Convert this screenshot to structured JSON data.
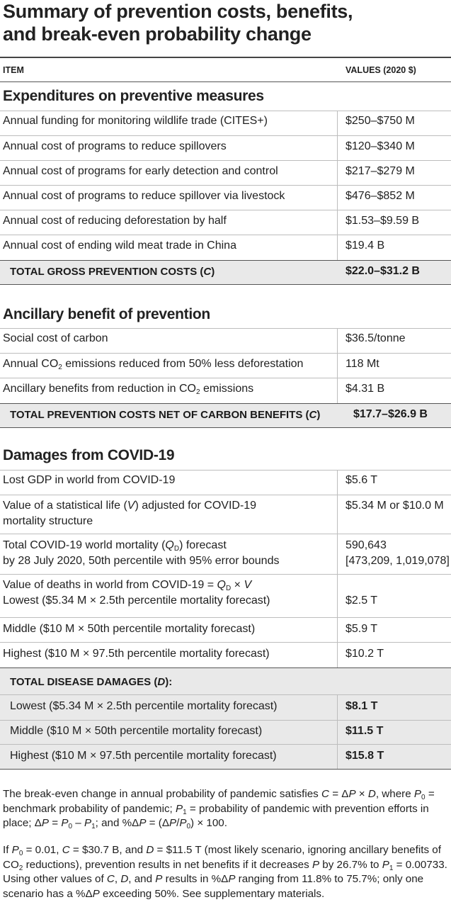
{
  "title_line1": "Summary of prevention costs, benefits,",
  "title_line2": "and break-even probability change",
  "col_item": "ITEM",
  "col_values": "VALUES (2020 $)",
  "sec1": {
    "heading": "Expenditures on preventive measures",
    "rows": [
      {
        "item": "Annual funding for monitoring wildlife trade (CITES+)",
        "value": "$250–$750 M"
      },
      {
        "item": "Annual cost of programs to reduce spillovers",
        "value": "$120–$340 M"
      },
      {
        "item": "Annual cost of programs for early detection and control",
        "value": "$217–$279 M"
      },
      {
        "item": "Annual cost of programs to reduce spillover via livestock",
        "value": "$476–$852 M"
      },
      {
        "item": "Annual cost of reducing deforestation by half",
        "value": "$1.53–$9.59 B"
      },
      {
        "item": "Annual cost of ending wild meat trade in China",
        "value": "$19.4 B"
      }
    ],
    "total_label": "TOTAL GROSS PREVENTION COSTS (C)",
    "total_value": "$22.0–$31.2 B"
  },
  "sec2": {
    "heading": "Ancillary benefit of prevention",
    "row1_item": "Social cost of carbon",
    "row1_value": "$36.5/tonne",
    "row2_item_a": "Annual CO",
    "row2_item_sub": "2",
    "row2_item_b": " emissions reduced from 50% less deforestation",
    "row2_value": "118 Mt",
    "row3_item_a": "Ancillary benefits from reduction in CO",
    "row3_item_sub": "2",
    "row3_item_b": " emissions",
    "row3_value": "$4.31 B",
    "total_label": "TOTAL PREVENTION COSTS NET OF CARBON BENEFITS (C)",
    "total_value": "$17.7–$26.9 B"
  },
  "sec3": {
    "heading": "Damages from COVID-19",
    "lost_gdp_item": "Lost GDP in world from COVID-19",
    "lost_gdp_value": "$5.6 T",
    "vsl_line1": "Value of a statistical life (V) adjusted for COVID-19",
    "vsl_line2": "mortality structure",
    "vsl_value": "$5.34 M or $10.0 M",
    "mort_line1": "Total COVID-19 world mortality (Q",
    "mort_sub": "D",
    "mort_line1_end": ") forecast",
    "mort_line2": "by 28 July 2020, 50th percentile with 95% error bounds",
    "mort_value1": "590,643",
    "mort_value2": "[473,209, 1,019,078]",
    "deaths_heading_a": "Value of deaths in world from COVID-19 = Q",
    "deaths_heading_sub": "D",
    "deaths_heading_b": " × V",
    "deaths_rows": [
      {
        "item": "Lowest  ($5.34 M × 2.5th percentile mortality forecast)",
        "value": "$2.5 T"
      },
      {
        "item": "Middle ($10 M × 50th percentile mortality forecast)",
        "value": "$5.9 T"
      },
      {
        "item": "Highest ($10 M × 97.5th percentile mortality forecast)",
        "value": "$10.2 T"
      }
    ],
    "total_heading": "TOTAL DISEASE DAMAGES (D):",
    "total_rows": [
      {
        "item": "Lowest  ($5.34 M × 2.5th percentile mortality forecast)",
        "value": "$8.1 T"
      },
      {
        "item": "Middle ($10 M × 50th percentile mortality forecast)",
        "value": "$11.5 T"
      },
      {
        "item": "Highest ($10 M × 97.5th percentile mortality forecast)",
        "value": "$15.8 T"
      }
    ]
  },
  "footnote1": "The break-even change in annual probability of pandemic satisfies C = ΔP × D, where P0 = benchmark probability of pandemic; P1 = probability of pandemic with prevention efforts in place; ΔP = P0 – P1; and %ΔP = (ΔP/P0) × 100.",
  "footnote2": "If P0 = 0.01, C = $30.7 B, and D = $11.5 T (most likely scenario, ignoring ancillary benefits of CO2 reductions), prevention results in net benefits if it decreases P by 26.7% to P1 = 0.00733. Using other values of C, D, and P results in %ΔP ranging from 11.8% to 75.7%; only one scenario has a %ΔP exceeding 50%. See supplementary materials."
}
